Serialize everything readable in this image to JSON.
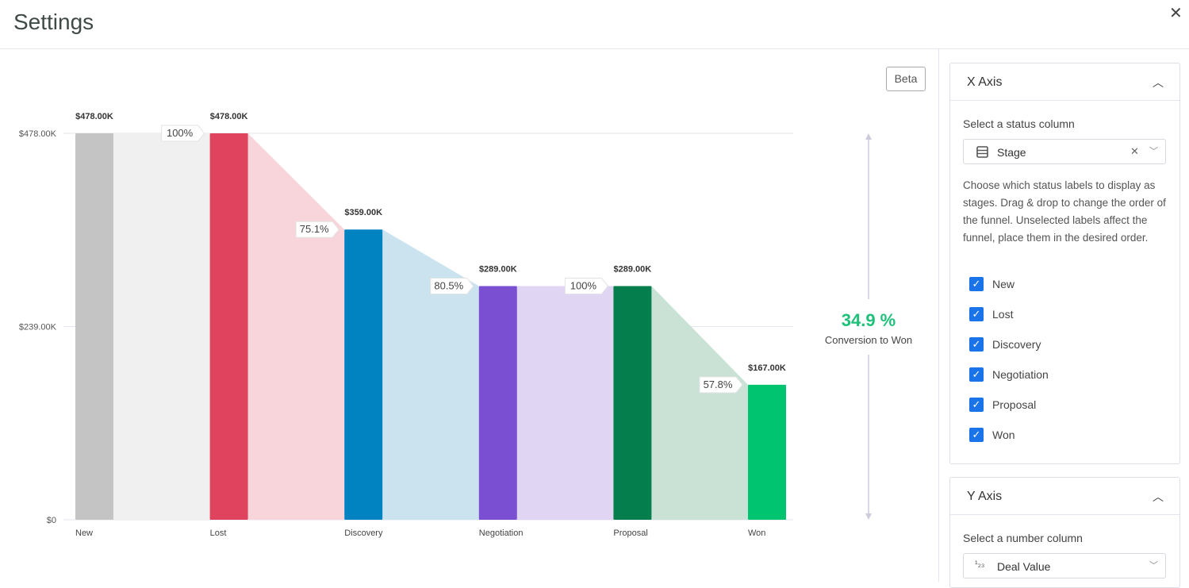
{
  "header": {
    "title": "Settings",
    "close_icon": "close-icon"
  },
  "beta_label": "Beta",
  "chart_data": {
    "type": "bar",
    "categories": [
      "New",
      "Lost",
      "Discovery",
      "Negotiation",
      "Proposal",
      "Won"
    ],
    "values": [
      478,
      478,
      359,
      289,
      289,
      167
    ],
    "value_labels": [
      "$478.00K",
      "$478.00K",
      "$359.00K",
      "$289.00K",
      "$289.00K",
      "$167.00K"
    ],
    "step_conversion_labels": [
      "100%",
      "75.1%",
      "80.5%",
      "100%",
      "57.8%"
    ],
    "colors": [
      "#c4c4c4",
      "#e0435e",
      "#0083c0",
      "#7a4fd1",
      "#047e4c",
      "#00c46f"
    ],
    "band_colors": [
      "#f0f0f0",
      "#f8d5da",
      "#cbe3ef",
      "#e0d6f4",
      "#c9e2d5"
    ],
    "yticks": [
      {
        "value": 0,
        "label": "$0"
      },
      {
        "value": 239,
        "label": "$239.00K"
      },
      {
        "value": 478,
        "label": "$478.00K"
      }
    ],
    "ylim": [
      0,
      478
    ],
    "grid": true
  },
  "conversion": {
    "value": "34.9 %",
    "label": "Conversion to Won",
    "color": "#1ec07a"
  },
  "sidebar": {
    "x_axis": {
      "title": "X Axis",
      "select_label": "Select a status column",
      "select_value": "Stage",
      "help": "Choose which status labels to display as stages. Drag & drop to change the order of the funnel. Unselected labels affect the funnel, place them in the desired order.",
      "options": [
        {
          "label": "New",
          "checked": true
        },
        {
          "label": "Lost",
          "checked": true
        },
        {
          "label": "Discovery",
          "checked": true
        },
        {
          "label": "Negotiation",
          "checked": true
        },
        {
          "label": "Proposal",
          "checked": true
        },
        {
          "label": "Won",
          "checked": true
        }
      ]
    },
    "y_axis": {
      "title": "Y Axis",
      "select_label": "Select a number column",
      "select_value": "Deal Value",
      "type_icon": "¹₂₃"
    }
  }
}
